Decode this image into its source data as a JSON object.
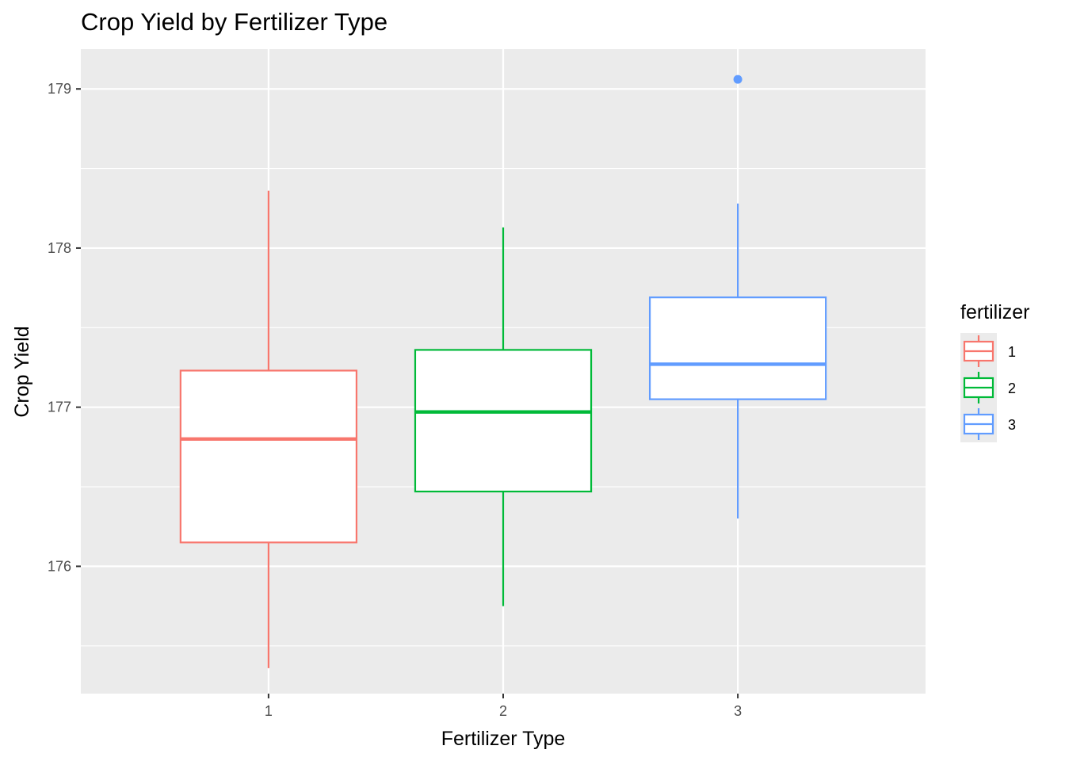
{
  "chart_data": {
    "type": "boxplot",
    "title": "Crop Yield by Fertilizer Type",
    "xlabel": "Fertilizer Type",
    "ylabel": "Crop Yield",
    "categories": [
      "1",
      "2",
      "3"
    ],
    "ylim": [
      175.2,
      179.25
    ],
    "y_ticks": [
      176,
      177,
      178,
      179
    ],
    "grid": true,
    "legend": {
      "title": "fertilizer",
      "position": "right",
      "entries": [
        "1",
        "2",
        "3"
      ]
    },
    "series": [
      {
        "name": "1",
        "color": "#F8766D",
        "whisker_low": 175.36,
        "q1": 176.15,
        "median": 176.8,
        "q3": 177.23,
        "whisker_high": 178.36,
        "outliers": []
      },
      {
        "name": "2",
        "color": "#00BA38",
        "whisker_low": 175.75,
        "q1": 176.47,
        "median": 176.97,
        "q3": 177.36,
        "whisker_high": 178.13,
        "outliers": []
      },
      {
        "name": "3",
        "color": "#619CFF",
        "whisker_low": 176.3,
        "q1": 177.05,
        "median": 177.27,
        "q3": 177.69,
        "whisker_high": 178.28,
        "outliers": [
          179.06
        ]
      }
    ]
  }
}
